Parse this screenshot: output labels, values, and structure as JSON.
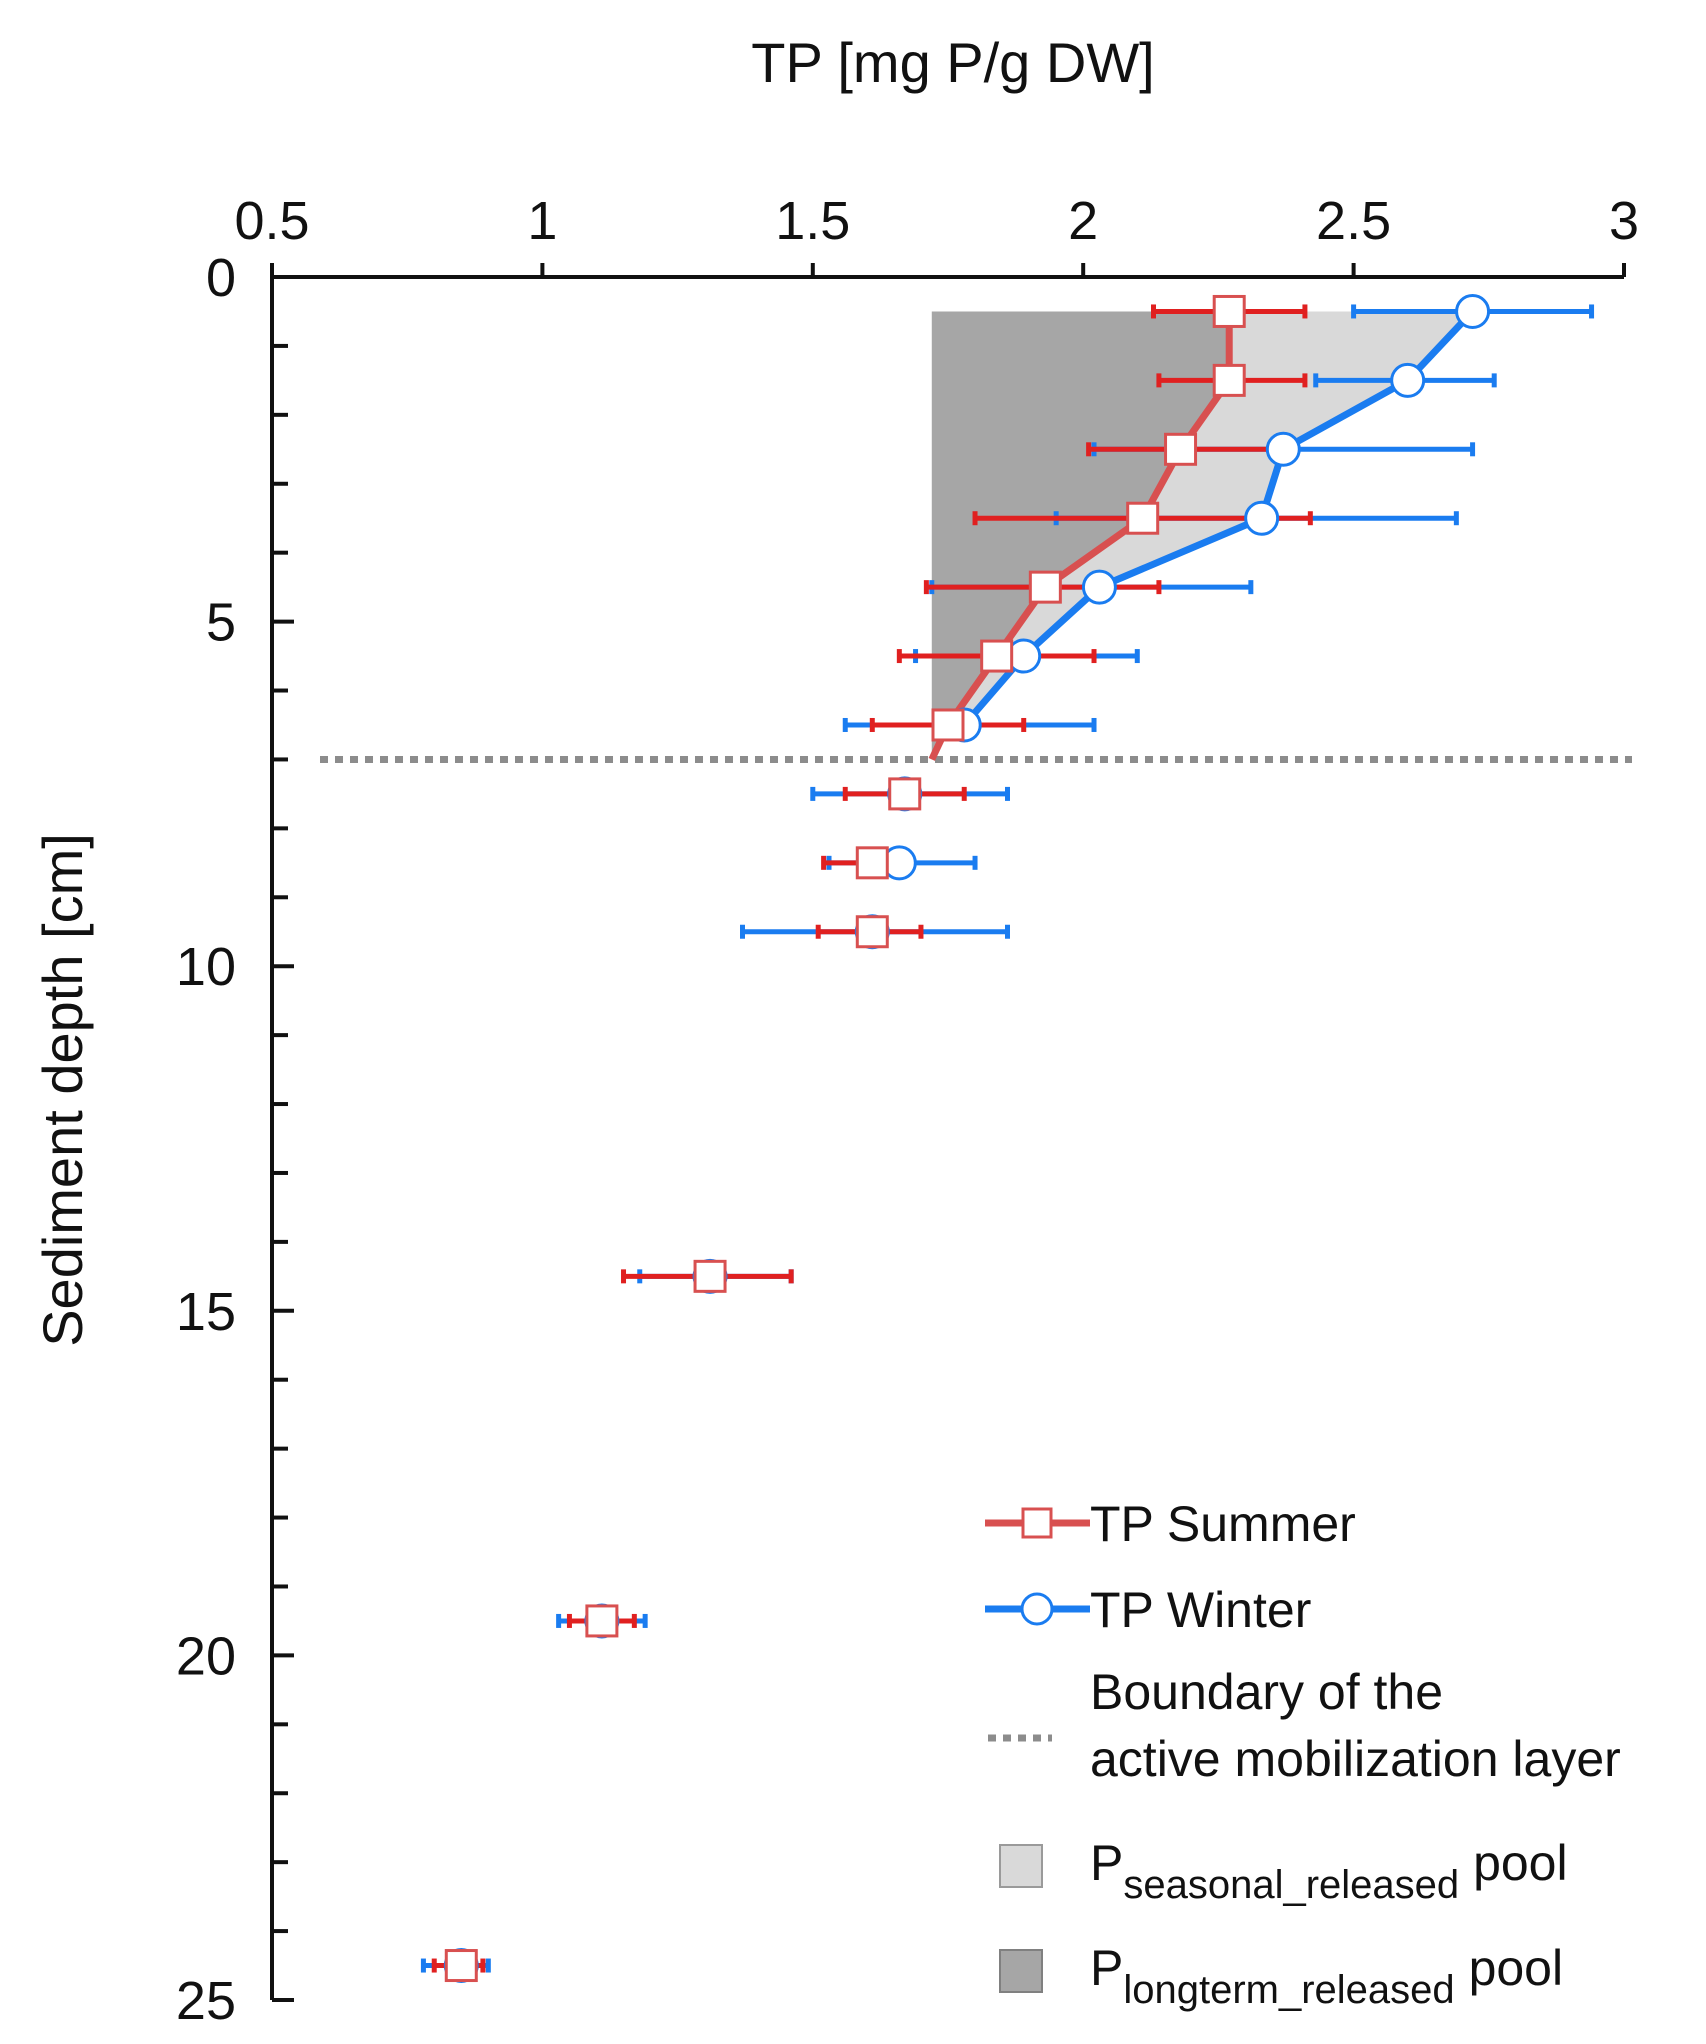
{
  "chart_data": {
    "type": "line",
    "orientation": "depth-profile",
    "xlabel": "TP [mg P/g DW]",
    "ylabel": "Sediment depth  [cm]",
    "xlim": [
      0.5,
      3
    ],
    "ylim": [
      0,
      25
    ],
    "x_ticks": [
      "0.5",
      "1",
      "1.5",
      "2",
      "2.5",
      "3"
    ],
    "x_tick_values": [
      0.5,
      1,
      1.5,
      2,
      2.5,
      3
    ],
    "y_ticks": [
      "0",
      "5",
      "10",
      "15",
      "20",
      "25"
    ],
    "y_tick_values": [
      0,
      5,
      10,
      15,
      20,
      25
    ],
    "series": [
      {
        "name": "TP Summer",
        "color": "#e02020",
        "line_color": "#d85050",
        "marker": "square",
        "depth": [
          0.5,
          1.5,
          2.5,
          3.5,
          4.5,
          5.5,
          6.5,
          7.5,
          8.5,
          9.5,
          14.5,
          19.5,
          24.5
        ],
        "values": [
          2.27,
          2.27,
          2.18,
          2.11,
          1.93,
          1.84,
          1.75,
          1.67,
          1.61,
          1.61,
          1.31,
          1.11,
          0.85
        ],
        "err_low": [
          2.13,
          2.14,
          2.01,
          1.8,
          1.71,
          1.66,
          1.61,
          1.56,
          1.52,
          1.51,
          1.15,
          1.05,
          0.8
        ],
        "err_high": [
          2.41,
          2.41,
          2.35,
          2.42,
          2.14,
          2.02,
          1.89,
          1.78,
          1.6,
          1.7,
          1.46,
          1.17,
          0.89
        ],
        "connected_until_depth": 7.0
      },
      {
        "name": "TP Winter",
        "color": "#1a7cf0",
        "line_color": "#1a7cf0",
        "marker": "circle",
        "depth": [
          0.5,
          1.5,
          2.5,
          3.5,
          4.5,
          5.5,
          6.5,
          7.5,
          8.5,
          9.5,
          14.5,
          19.5,
          24.5
        ],
        "values": [
          2.72,
          2.6,
          2.37,
          2.33,
          2.03,
          1.89,
          1.78,
          1.67,
          1.66,
          1.61,
          1.31,
          1.11,
          0.85
        ],
        "err_low": [
          2.5,
          2.43,
          2.02,
          1.95,
          1.72,
          1.69,
          1.56,
          1.5,
          1.53,
          1.37,
          1.18,
          1.03,
          0.78
        ],
        "err_high": [
          2.94,
          2.76,
          2.72,
          2.69,
          2.31,
          2.1,
          2.02,
          1.86,
          1.8,
          1.86,
          1.46,
          1.19,
          0.9
        ],
        "connected_until_depth": 6.5
      }
    ],
    "boundary_depth": 7.0,
    "longterm_pool_x": 1.72,
    "pool_top_depth": 0.5,
    "legend": {
      "position": "bottom-right",
      "summer": "TP Summer",
      "winter": "TP Winter",
      "boundary_line1": "Boundary of the",
      "boundary_line2": "active mobilization layer",
      "seasonal_main": "P",
      "seasonal_sub": "seasonal_released",
      "seasonal_suffix": " pool",
      "longterm_main": "P",
      "longterm_sub": "longterm_released",
      "longterm_suffix": " pool"
    },
    "colors": {
      "summer": "#e02020",
      "summer_line": "#d85050",
      "winter": "#1a7cf0",
      "seasonal_fill": "#d9d9d9",
      "longterm_fill": "#a6a6a6",
      "boundary": "#8c8c8c",
      "axis": "#111111"
    }
  }
}
